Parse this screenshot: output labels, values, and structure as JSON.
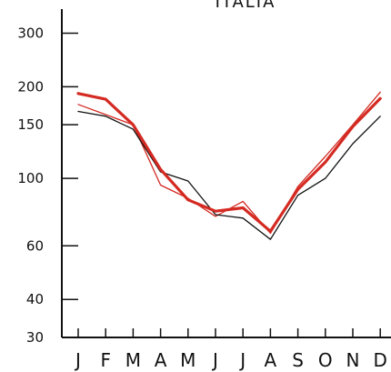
{
  "chart_data": {
    "type": "line",
    "title": "ITALIA",
    "xlabel": "",
    "ylabel": "",
    "scale": "log",
    "ylim": [
      30,
      360
    ],
    "yticks": [
      30,
      40,
      60,
      100,
      150,
      200,
      300
    ],
    "ytick_labels": [
      "30",
      "40",
      "60",
      "100",
      "150",
      "200",
      "300"
    ],
    "categories": [
      "J",
      "F",
      "M",
      "A",
      "M",
      "J",
      "J",
      "A",
      "S",
      "O",
      "N",
      "D"
    ],
    "series": [
      {
        "style": "thick",
        "color": "#d42a22",
        "values": [
          190,
          182,
          150,
          107,
          85,
          78,
          80,
          67,
          92,
          113,
          148,
          183
        ]
      },
      {
        "style": "thin",
        "color": "#d42a22",
        "values": [
          175,
          162,
          150,
          95,
          86,
          75,
          84,
          66,
          94,
          118,
          150,
          192
        ]
      },
      {
        "style": "thin",
        "color": "#111111",
        "values": [
          166,
          160,
          145,
          105,
          98,
          76,
          74,
          63,
          88,
          100,
          130,
          160
        ]
      }
    ],
    "x_points": [
      {
        "i": 0,
        "v": 160
      },
      {
        "i": 0.35,
        "v": 170
      }
    ],
    "grid": false
  },
  "colors": {
    "axis": "#111111",
    "red": "#d42a22",
    "black": "#111111"
  }
}
